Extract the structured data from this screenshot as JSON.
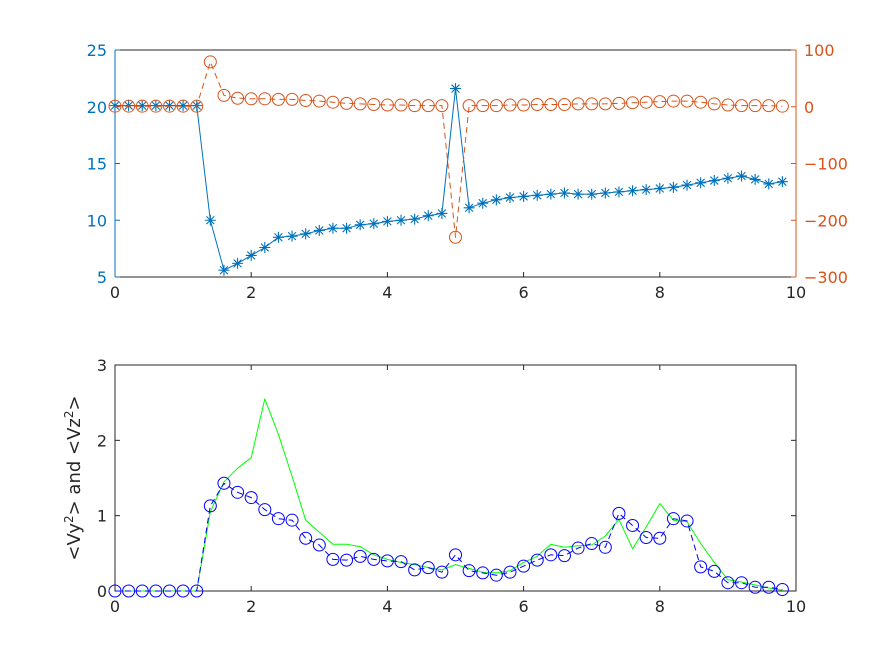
{
  "chart_data": [
    {
      "type": "line",
      "axes": "dual-y",
      "x": [
        0,
        0.2,
        0.4,
        0.6,
        0.8,
        1.0,
        1.2,
        1.4,
        1.6,
        1.8,
        2.0,
        2.2,
        2.4,
        2.6,
        2.8,
        3.0,
        3.2,
        3.4,
        3.6,
        3.8,
        4.0,
        4.2,
        4.4,
        4.6,
        4.8,
        5.0,
        5.2,
        5.4,
        5.6,
        5.8,
        6.0,
        6.2,
        6.4,
        6.6,
        6.8,
        7.0,
        7.2,
        7.4,
        7.6,
        7.8,
        8.0,
        8.2,
        8.4,
        8.6,
        8.8,
        9.0,
        9.2,
        9.4,
        9.6,
        9.8
      ],
      "xlim": [
        0,
        10
      ],
      "xticks": [
        "0",
        "2",
        "4",
        "6",
        "8",
        "10"
      ],
      "ylim_left": [
        5,
        25
      ],
      "yticks_left": [
        "5",
        "10",
        "15",
        "20",
        "25"
      ],
      "ylim_right": [
        -300,
        100
      ],
      "yticks_right": [
        "-300",
        "-200",
        "-100",
        "0",
        "100"
      ],
      "series": [
        {
          "axis": "left",
          "color": "#0072BD",
          "marker": "asterisk",
          "line": "solid",
          "values": [
            20.1,
            20.1,
            20.1,
            20.1,
            20.1,
            20.1,
            20.1,
            10.0,
            5.6,
            6.2,
            6.9,
            7.6,
            8.5,
            8.6,
            8.8,
            9.1,
            9.3,
            9.3,
            9.6,
            9.7,
            9.9,
            10.0,
            10.1,
            10.4,
            10.6,
            21.6,
            11.1,
            11.5,
            11.8,
            12.0,
            12.1,
            12.2,
            12.3,
            12.4,
            12.3,
            12.3,
            12.4,
            12.5,
            12.6,
            12.7,
            12.8,
            12.9,
            13.1,
            13.3,
            13.5,
            13.7,
            13.9,
            13.6,
            13.2,
            13.4
          ]
        },
        {
          "axis": "right",
          "color": "#D95319",
          "marker": "circle",
          "line": "dashed",
          "values": [
            1,
            1,
            1,
            1,
            1,
            1,
            1,
            79,
            20,
            15,
            14,
            14,
            13,
            13,
            11,
            10,
            8,
            6,
            5,
            4,
            3,
            3,
            2,
            2,
            2,
            -230,
            2,
            2,
            2,
            3,
            3,
            4,
            4,
            4,
            5,
            5,
            5,
            6,
            7,
            8,
            9,
            10,
            10,
            8,
            5,
            3,
            2,
            2,
            2,
            1
          ]
        }
      ]
    },
    {
      "type": "line",
      "x": [
        0,
        0.2,
        0.4,
        0.6,
        0.8,
        1.0,
        1.2,
        1.4,
        1.6,
        1.8,
        2.0,
        2.2,
        2.4,
        2.6,
        2.8,
        3.0,
        3.2,
        3.4,
        3.6,
        3.8,
        4.0,
        4.2,
        4.4,
        4.6,
        4.8,
        5.0,
        5.2,
        5.4,
        5.6,
        5.8,
        6.0,
        6.2,
        6.4,
        6.6,
        6.8,
        7.0,
        7.2,
        7.4,
        7.6,
        7.8,
        8.0,
        8.2,
        8.4,
        8.6,
        8.8,
        9.0,
        9.2,
        9.4,
        9.6,
        9.8
      ],
      "xlim": [
        0,
        10
      ],
      "xticks": [
        "0",
        "2",
        "4",
        "6",
        "8",
        "10"
      ],
      "ylim": [
        0,
        3
      ],
      "yticks": [
        "0",
        "1",
        "2",
        "3"
      ],
      "ylabel_parts": [
        "<Vy",
        "2",
        "> and <Vz",
        "2",
        ">"
      ],
      "series": [
        {
          "color": "#0000FF",
          "marker": "circle",
          "line": "dashed",
          "values": [
            0,
            0,
            0,
            0,
            0,
            0,
            0,
            1.13,
            1.43,
            1.31,
            1.24,
            1.08,
            0.96,
            0.94,
            0.7,
            0.61,
            0.42,
            0.41,
            0.46,
            0.42,
            0.4,
            0.39,
            0.28,
            0.31,
            0.25,
            0.48,
            0.27,
            0.24,
            0.21,
            0.25,
            0.33,
            0.41,
            0.48,
            0.47,
            0.57,
            0.63,
            0.58,
            1.03,
            0.87,
            0.71,
            0.7,
            0.96,
            0.93,
            0.32,
            0.26,
            0.11,
            0.11,
            0.05,
            0.05,
            0.02
          ]
        },
        {
          "color": "#00FF00",
          "marker": "none",
          "line": "solid",
          "values": [
            0,
            0,
            0,
            0,
            0,
            0,
            0,
            1.05,
            1.45,
            1.63,
            1.77,
            2.55,
            2.08,
            1.52,
            0.94,
            0.78,
            0.62,
            0.62,
            0.59,
            0.48,
            0.42,
            0.38,
            0.35,
            0.31,
            0.28,
            0.35,
            0.3,
            0.25,
            0.24,
            0.27,
            0.38,
            0.46,
            0.62,
            0.58,
            0.6,
            0.61,
            0.73,
            0.95,
            0.56,
            0.85,
            1.16,
            0.94,
            0.92,
            0.63,
            0.38,
            0.15,
            0.12,
            0.08,
            0.04,
            0.01
          ]
        }
      ]
    }
  ]
}
